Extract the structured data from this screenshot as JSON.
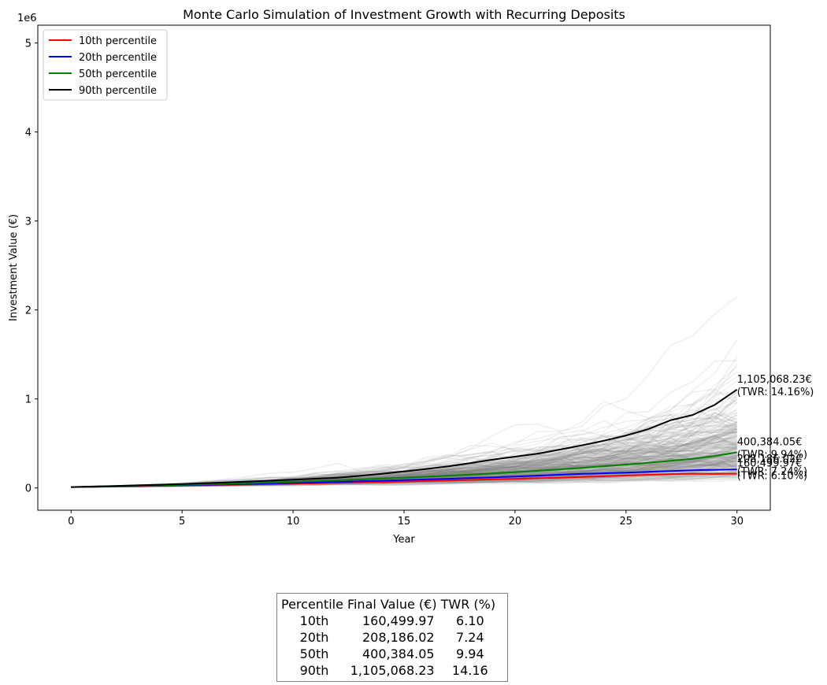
{
  "chart_data": {
    "type": "line",
    "title": "Monte Carlo Simulation of Investment Growth with Recurring Deposits",
    "xlabel": "Year",
    "ylabel": "Investment Value (€)",
    "y_offset_label": "1e6",
    "xlim": [
      -1.5,
      31.5
    ],
    "ylim": [
      -250000,
      5200000
    ],
    "xticks": [
      0,
      5,
      10,
      15,
      20,
      25,
      30
    ],
    "yticks": [
      0,
      1000000,
      2000000,
      3000000,
      4000000,
      5000000
    ],
    "ytick_labels": [
      "0",
      "1",
      "2",
      "3",
      "4",
      "5"
    ],
    "grid": false,
    "legend_position": "upper left",
    "simulation_color": "#808080",
    "series": [
      {
        "name": "10th percentile",
        "color": "#ff0000",
        "x": [
          0,
          1,
          2,
          3,
          4,
          5,
          6,
          7,
          8,
          9,
          10,
          11,
          12,
          13,
          14,
          15,
          16,
          17,
          18,
          19,
          20,
          21,
          22,
          23,
          24,
          25,
          26,
          27,
          28,
          29,
          30
        ],
        "values": [
          10000,
          13500,
          17000,
          20600,
          24300,
          28100,
          32000,
          36000,
          40100,
          44300,
          48700,
          53200,
          57900,
          62800,
          67900,
          73100,
          78600,
          84300,
          90200,
          96400,
          102800,
          109500,
          116500,
          123800,
          131400,
          139300,
          147600,
          156300,
          160400,
          158000,
          160500
        ]
      },
      {
        "name": "20th percentile",
        "color": "#0000ff",
        "x": [
          0,
          1,
          2,
          3,
          4,
          5,
          6,
          7,
          8,
          9,
          10,
          11,
          12,
          13,
          14,
          15,
          16,
          17,
          18,
          19,
          20,
          21,
          22,
          23,
          24,
          25,
          26,
          27,
          28,
          29,
          30
        ],
        "values": [
          10000,
          13800,
          17800,
          21900,
          26200,
          30700,
          35400,
          40300,
          45400,
          50700,
          56300,
          62100,
          68200,
          74600,
          81300,
          88300,
          95700,
          103400,
          111500,
          120000,
          128900,
          138300,
          148100,
          158400,
          165000,
          172000,
          181000,
          190000,
          199000,
          205000,
          208186
        ]
      },
      {
        "name": "50th percentile",
        "color": "#008000",
        "x": [
          0,
          1,
          2,
          3,
          4,
          5,
          6,
          7,
          8,
          9,
          10,
          11,
          12,
          13,
          14,
          15,
          16,
          17,
          18,
          19,
          20,
          21,
          22,
          23,
          24,
          25,
          26,
          27,
          28,
          29,
          30
        ],
        "values": [
          10000,
          14500,
          19200,
          24200,
          29500,
          35100,
          41100,
          47500,
          54300,
          61500,
          69200,
          77400,
          86100,
          95400,
          105300,
          115800,
          126900,
          138700,
          151200,
          164500,
          178600,
          193600,
          209500,
          226400,
          244300,
          263300,
          283500,
          305000,
          328000,
          360000,
          400384
        ]
      },
      {
        "name": "90th percentile",
        "color": "#000000",
        "x": [
          0,
          1,
          2,
          3,
          4,
          5,
          6,
          7,
          8,
          9,
          10,
          11,
          12,
          13,
          14,
          15,
          16,
          17,
          18,
          19,
          20,
          21,
          22,
          23,
          24,
          25,
          26,
          27,
          28,
          29,
          30
        ],
        "values": [
          10000,
          16000,
          22500,
          29500,
          37000,
          45000,
          53500,
          62500,
          72000,
          82000,
          92500,
          103500,
          115000,
          136000,
          160000,
          186000,
          214000,
          244000,
          280000,
          318000,
          352000,
          385000,
          430000,
          478000,
          530000,
          590000,
          660000,
          760000,
          820000,
          935000,
          1105068
        ]
      }
    ],
    "annotations": [
      {
        "x": 30,
        "y": 1105068.23,
        "line1": "1,105,068.23€",
        "line2": "(TWR: 14.16%)"
      },
      {
        "x": 30,
        "y": 400384.05,
        "line1": "400,384.05€",
        "line2": "(TWR: 9.94%)"
      },
      {
        "x": 30,
        "y": 208186.02,
        "line1": "208,186.02€",
        "line2": "(TWR: 7.24%)"
      },
      {
        "x": 30,
        "y": 160499.97,
        "line1": "160,499.97€",
        "line2": "(TWR: 6.10%)"
      }
    ]
  },
  "summary_table": {
    "headers": [
      "Percentile",
      "Final Value (€)",
      "TWR (%)"
    ],
    "rows": [
      {
        "percentile": "10th",
        "final_value": "160,499.97",
        "twr": "6.10"
      },
      {
        "percentile": "20th",
        "final_value": "208,186.02",
        "twr": "7.24"
      },
      {
        "percentile": "50th",
        "final_value": "400,384.05",
        "twr": "9.94"
      },
      {
        "percentile": "90th",
        "final_value": "1,105,068.23",
        "twr": "14.16"
      }
    ]
  }
}
